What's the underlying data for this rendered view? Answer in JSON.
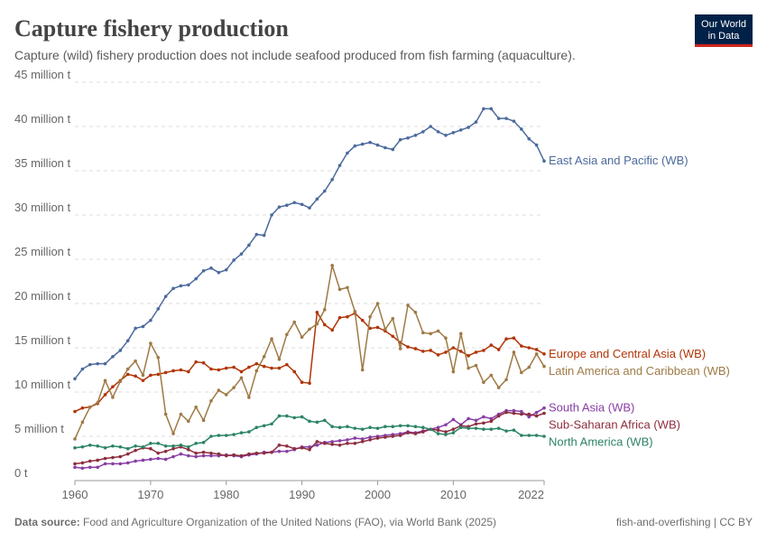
{
  "chart_data": {
    "type": "line",
    "title": "Capture fishery production",
    "subtitle": "Capture (wild) fishery production does not include seafood produced from fish farming (aquaculture).",
    "logo": [
      "Our World",
      "in Data"
    ],
    "source_label": "Data source:",
    "source": "Food and Agriculture Organization of the United Nations (FAO), via World Bank (2025)",
    "credit": "fish-and-overfishing | CC BY",
    "x": [
      1960,
      1961,
      1962,
      1963,
      1964,
      1965,
      1966,
      1967,
      1968,
      1969,
      1970,
      1971,
      1972,
      1973,
      1974,
      1975,
      1976,
      1977,
      1978,
      1979,
      1980,
      1981,
      1982,
      1983,
      1984,
      1985,
      1986,
      1987,
      1988,
      1989,
      1990,
      1991,
      1992,
      1993,
      1994,
      1995,
      1996,
      1997,
      1998,
      1999,
      2000,
      2001,
      2002,
      2003,
      2004,
      2005,
      2006,
      2007,
      2008,
      2009,
      2010,
      2011,
      2012,
      2013,
      2014,
      2015,
      2016,
      2017,
      2018,
      2019,
      2020,
      2021,
      2022
    ],
    "xlim": [
      1960,
      2022
    ],
    "xticks": [
      1960,
      1970,
      1980,
      1990,
      2000,
      2010,
      2022
    ],
    "ylim": [
      0,
      45
    ],
    "yticks": [
      {
        "value": 0,
        "label": "0 t"
      },
      {
        "value": 5,
        "label": "5 million t"
      },
      {
        "value": 10,
        "label": "10 million t"
      },
      {
        "value": 15,
        "label": "15 million t"
      },
      {
        "value": 20,
        "label": "20 million t"
      },
      {
        "value": 25,
        "label": "25 million t"
      },
      {
        "value": 30,
        "label": "30 million t"
      },
      {
        "value": 35,
        "label": "35 million t"
      },
      {
        "value": 40,
        "label": "40 million t"
      },
      {
        "value": 45,
        "label": "45 million t"
      }
    ],
    "grid": true,
    "series": [
      {
        "name": "East Asia and Pacific (WB)",
        "color": "#4c6a9c",
        "values": [
          11.5,
          12.6,
          13.1,
          13.2,
          13.2,
          14.0,
          14.7,
          15.8,
          17.2,
          17.4,
          18.1,
          19.4,
          20.8,
          21.7,
          22.0,
          22.1,
          22.8,
          23.7,
          24.0,
          23.5,
          23.8,
          24.9,
          25.6,
          26.6,
          27.8,
          27.7,
          30.0,
          30.9,
          31.1,
          31.4,
          31.2,
          30.8,
          31.8,
          32.7,
          34.0,
          35.6,
          37.0,
          37.8,
          38.0,
          38.2,
          37.9,
          37.6,
          37.4,
          38.5,
          38.7,
          39.0,
          39.4,
          40.0,
          39.4,
          39.0,
          39.3,
          39.6,
          39.9,
          40.5,
          42.0,
          42.0,
          40.9,
          40.9,
          40.6,
          39.7,
          38.6,
          37.9,
          36.1
        ]
      },
      {
        "name": "Europe and Central Asia (WB)",
        "color": "#b13507",
        "values": [
          7.8,
          8.2,
          8.3,
          8.7,
          9.7,
          10.6,
          11.3,
          12.0,
          11.8,
          11.3,
          11.9,
          12.0,
          12.2,
          12.4,
          12.5,
          12.3,
          13.4,
          13.3,
          12.6,
          12.5,
          12.7,
          12.8,
          12.3,
          12.8,
          13.2,
          12.9,
          12.7,
          12.7,
          13.1,
          12.3,
          11.1,
          11.0,
          19.0,
          17.6,
          17.0,
          18.4,
          18.5,
          18.9,
          18.1,
          17.2,
          17.3,
          16.9,
          16.3,
          15.6,
          15.1,
          14.9,
          14.6,
          14.7,
          14.2,
          14.5,
          15.0,
          14.6,
          14.1,
          14.5,
          14.7,
          15.3,
          14.8,
          16.0,
          16.1,
          15.2,
          15.0,
          14.8,
          14.3
        ]
      },
      {
        "name": "Latin America and Caribbean (WB)",
        "color": "#9e7a45",
        "values": [
          4.7,
          6.6,
          8.3,
          8.8,
          11.3,
          9.4,
          11.2,
          12.6,
          13.5,
          11.9,
          15.5,
          13.9,
          7.5,
          5.3,
          7.5,
          6.7,
          8.3,
          6.8,
          9.0,
          10.2,
          9.7,
          10.5,
          11.6,
          9.4,
          12.4,
          14.0,
          16.0,
          13.7,
          16.5,
          17.9,
          16.2,
          17.1,
          17.7,
          19.3,
          24.3,
          21.6,
          21.8,
          19.1,
          12.5,
          18.5,
          20.0,
          17.1,
          18.3,
          14.9,
          19.8,
          19.0,
          16.7,
          16.6,
          16.9,
          16.1,
          12.3,
          16.6,
          12.7,
          13.0,
          11.1,
          11.9,
          10.5,
          11.4,
          14.5,
          12.2,
          12.8,
          14.3,
          12.9
        ]
      },
      {
        "name": "South Asia (WB)",
        "color": "#883ea5",
        "values": [
          1.5,
          1.4,
          1.5,
          1.5,
          1.9,
          1.9,
          1.9,
          2.0,
          2.2,
          2.3,
          2.4,
          2.5,
          2.4,
          2.7,
          3.0,
          2.8,
          2.7,
          2.8,
          2.8,
          2.8,
          2.9,
          2.8,
          2.7,
          2.9,
          3.0,
          3.2,
          3.2,
          3.3,
          3.3,
          3.5,
          3.8,
          3.8,
          4.0,
          4.3,
          4.4,
          4.5,
          4.6,
          4.8,
          4.7,
          4.9,
          5.0,
          5.1,
          5.2,
          5.3,
          5.5,
          5.4,
          5.6,
          5.8,
          6.0,
          6.3,
          6.9,
          6.3,
          7.0,
          6.8,
          7.2,
          7.0,
          7.5,
          7.9,
          7.9,
          7.8,
          7.2,
          7.7,
          8.2
        ]
      },
      {
        "name": "Sub-Saharan Africa (WB)",
        "color": "#8c2d3e",
        "values": [
          1.9,
          2.0,
          2.2,
          2.3,
          2.5,
          2.6,
          2.7,
          3.0,
          3.4,
          3.7,
          3.6,
          3.1,
          3.3,
          3.6,
          3.8,
          3.5,
          3.1,
          3.2,
          3.1,
          3.0,
          2.8,
          2.9,
          2.8,
          3.0,
          3.1,
          3.1,
          3.2,
          4.0,
          3.9,
          3.6,
          3.7,
          3.5,
          4.4,
          4.2,
          4.1,
          4.0,
          4.2,
          4.2,
          4.4,
          4.6,
          4.8,
          4.9,
          5.0,
          5.1,
          5.4,
          5.3,
          5.5,
          5.8,
          5.7,
          5.5,
          5.8,
          6.2,
          6.1,
          6.4,
          6.5,
          6.7,
          7.3,
          7.7,
          7.6,
          7.5,
          7.5,
          7.3,
          7.6
        ]
      },
      {
        "name": "North America (WB)",
        "color": "#2c8465",
        "values": [
          3.7,
          3.8,
          4.0,
          3.9,
          3.7,
          3.9,
          3.8,
          3.6,
          3.9,
          3.8,
          4.2,
          4.2,
          3.9,
          3.9,
          4.0,
          3.8,
          4.2,
          4.3,
          5.0,
          5.1,
          5.1,
          5.2,
          5.4,
          5.5,
          6.0,
          6.2,
          6.4,
          7.3,
          7.3,
          7.1,
          7.2,
          6.7,
          6.6,
          6.8,
          6.1,
          6.0,
          6.1,
          5.9,
          5.8,
          6.0,
          5.9,
          6.1,
          6.1,
          6.2,
          6.2,
          6.1,
          6.0,
          5.8,
          5.3,
          5.2,
          5.4,
          6.0,
          5.9,
          5.9,
          5.8,
          5.8,
          5.9,
          5.6,
          5.7,
          5.1,
          5.1,
          5.1,
          5.0
        ]
      }
    ]
  }
}
